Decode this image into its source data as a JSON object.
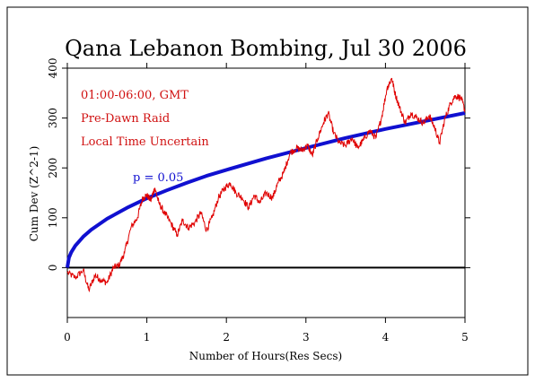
{
  "chart_data": {
    "type": "line",
    "title": "Qana Lebanon Bombing, Jul 30 2006",
    "xlabel": "Number of Hours(Res Secs)",
    "ylabel": "Cum Dev (Z^2-1)",
    "xlim": [
      0,
      5
    ],
    "ylim": [
      -100,
      400
    ],
    "x_ticks": [
      0,
      1,
      2,
      3,
      4,
      5
    ],
    "y_ticks": [
      0,
      100,
      200,
      300,
      400
    ],
    "grid": false,
    "annotations": [
      "01:00-06:00, GMT",
      "Pre-Dawn Raid",
      "Local Time Uncertain"
    ],
    "colors": {
      "data": "#e00000",
      "probability": "#1010d0",
      "zero": "#000000",
      "text_red": "#d01010"
    },
    "series": [
      {
        "name": "",
        "role": "cumulative-deviation",
        "color": "#e00000",
        "x": [
          0,
          0.1,
          0.2,
          0.27,
          0.35,
          0.42,
          0.5,
          0.58,
          0.65,
          0.72,
          0.8,
          0.88,
          0.95,
          1.0,
          1.05,
          1.1,
          1.15,
          1.22,
          1.3,
          1.38,
          1.45,
          1.52,
          1.6,
          1.68,
          1.75,
          1.82,
          1.9,
          1.98,
          2.05,
          2.12,
          2.2,
          2.28,
          2.35,
          2.42,
          2.5,
          2.58,
          2.65,
          2.72,
          2.8,
          2.88,
          2.95,
          3.02,
          3.08,
          3.15,
          3.22,
          3.28,
          3.35,
          3.42,
          3.5,
          3.58,
          3.65,
          3.72,
          3.8,
          3.88,
          3.95,
          4.02,
          4.08,
          4.12,
          4.18,
          4.25,
          4.32,
          4.4,
          4.48,
          4.55,
          4.62,
          4.68,
          4.75,
          4.82,
          4.88,
          4.95,
          5.0
        ],
        "values": [
          -10,
          -20,
          -5,
          -45,
          -15,
          -25,
          -30,
          0,
          5,
          30,
          80,
          100,
          140,
          145,
          135,
          160,
          130,
          110,
          90,
          65,
          95,
          80,
          90,
          110,
          75,
          100,
          140,
          160,
          170,
          150,
          140,
          120,
          145,
          130,
          150,
          140,
          170,
          190,
          230,
          240,
          235,
          245,
          225,
          260,
          290,
          310,
          270,
          250,
          245,
          260,
          240,
          255,
          275,
          260,
          300,
          360,
          380,
          350,
          320,
          290,
          310,
          300,
          290,
          305,
          280,
          250,
          300,
          330,
          345,
          340,
          315
        ]
      },
      {
        "name": "",
        "role": "probability-envelope",
        "color": "#1010d0",
        "label": "p = 0.05",
        "x": [
          0,
          0.02,
          0.05,
          0.1,
          0.2,
          0.3,
          0.5,
          0.75,
          1.0,
          1.25,
          1.5,
          1.75,
          2.0,
          2.5,
          3.0,
          3.5,
          4.0,
          4.5,
          5.0
        ],
        "values": [
          0,
          20,
          31,
          44,
          62,
          76,
          98,
          120,
          139,
          155,
          170,
          184,
          196,
          219,
          240,
          260,
          278,
          294,
          310
        ]
      }
    ]
  }
}
